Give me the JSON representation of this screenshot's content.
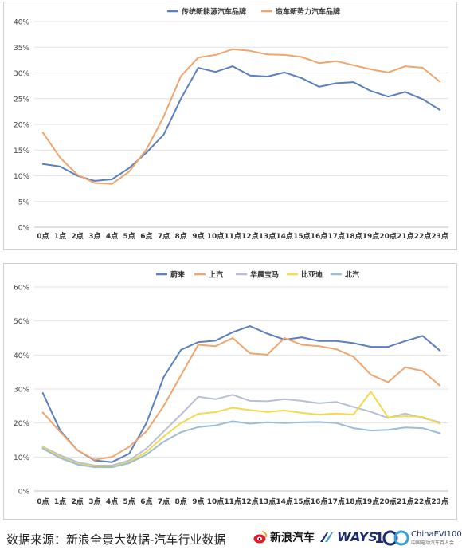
{
  "chart_data": [
    {
      "type": "line",
      "categories": [
        "0点",
        "1点",
        "2点",
        "3点",
        "4点",
        "5点",
        "6点",
        "7点",
        "8点",
        "9点",
        "10点",
        "11点",
        "12点",
        "13点",
        "14点",
        "15点",
        "16点",
        "17点",
        "18点",
        "19点",
        "20点",
        "21点",
        "22点",
        "23点"
      ],
      "ylim": [
        0,
        40
      ],
      "yticks": [
        "0%",
        "5%",
        "10%",
        "15%",
        "20%",
        "25%",
        "30%",
        "35%",
        "40%"
      ],
      "grid": true,
      "legend_position": "top",
      "series": [
        {
          "name": "传统新能源汽车品牌",
          "color": "#5b7fbf",
          "values": [
            12.3,
            11.8,
            10.0,
            9.0,
            9.3,
            11.5,
            14.5,
            18.0,
            25.0,
            31.0,
            30.2,
            31.3,
            29.5,
            29.3,
            30.1,
            29.0,
            27.3,
            28.0,
            28.2,
            26.5,
            25.4,
            26.3,
            24.9,
            22.8
          ]
        },
        {
          "name": "造车新势力汽车品牌",
          "color": "#f0a56e",
          "values": [
            18.4,
            13.5,
            10.2,
            8.6,
            8.4,
            10.8,
            15.1,
            21.5,
            29.4,
            33.0,
            33.5,
            34.6,
            34.3,
            33.6,
            33.5,
            33.1,
            31.9,
            32.3,
            31.5,
            30.7,
            30.1,
            31.3,
            31.0,
            28.3
          ]
        }
      ]
    },
    {
      "type": "line",
      "categories": [
        "0点",
        "1点",
        "2点",
        "3点",
        "4点",
        "5点",
        "6点",
        "7点",
        "8点",
        "9点",
        "10点",
        "11点",
        "12点",
        "13点",
        "14点",
        "15点",
        "16点",
        "17点",
        "18点",
        "19点",
        "20点",
        "21点",
        "22点",
        "23点"
      ],
      "ylim": [
        0,
        60
      ],
      "yticks": [
        "0%",
        "10%",
        "20%",
        "30%",
        "40%",
        "50%",
        "60%"
      ],
      "grid": true,
      "legend_position": "top",
      "series": [
        {
          "name": "蔚来",
          "color": "#5b7fbf",
          "values": [
            28.8,
            17.8,
            12.0,
            9.0,
            8.5,
            11.0,
            20.0,
            33.5,
            41.5,
            43.8,
            44.2,
            46.7,
            48.5,
            46.3,
            44.5,
            45.2,
            44.1,
            44.1,
            43.5,
            42.4,
            42.4,
            44.1,
            45.6,
            41.3
          ]
        },
        {
          "name": "上汽",
          "color": "#f0a56e",
          "values": [
            23.1,
            17.4,
            12.0,
            9.2,
            10.0,
            13.0,
            17.5,
            25.0,
            34.0,
            43.0,
            42.6,
            45.0,
            40.5,
            40.1,
            45.0,
            43.0,
            42.6,
            41.7,
            39.5,
            34.2,
            32.0,
            36.4,
            35.3,
            31.0
          ]
        },
        {
          "name": "华晨宝马",
          "color": "#b9bfd2",
          "values": [
            13.0,
            10.5,
            8.5,
            7.5,
            7.5,
            9.0,
            12.5,
            17.5,
            22.5,
            27.7,
            27.0,
            28.3,
            26.5,
            26.4,
            27.0,
            26.5,
            25.8,
            26.2,
            24.7,
            23.3,
            21.5,
            22.8,
            21.5,
            20.2
          ]
        },
        {
          "name": "比亚迪",
          "color": "#f2d94e",
          "values": [
            12.8,
            10.0,
            8.0,
            7.3,
            7.2,
            8.5,
            11.5,
            16.0,
            20.0,
            22.7,
            23.2,
            24.5,
            23.8,
            23.3,
            23.7,
            23.0,
            22.5,
            22.8,
            22.5,
            29.2,
            21.7,
            22.0,
            21.8,
            19.8
          ]
        },
        {
          "name": "北汽",
          "color": "#9cbcd8",
          "values": [
            12.5,
            9.7,
            7.8,
            7.0,
            7.0,
            8.2,
            10.7,
            14.5,
            17.3,
            18.8,
            19.3,
            20.5,
            19.8,
            20.2,
            20.0,
            20.2,
            20.3,
            20.0,
            18.5,
            17.8,
            18.0,
            18.7,
            18.5,
            17.0
          ]
        }
      ]
    }
  ],
  "footer": {
    "source_text": "数据来源：新浪全景大数据-汽车行业数据",
    "brand_sina": "新浪汽车",
    "brand_ways": "WAYS",
    "brand_cevi": "ChinaEVI100",
    "brand_cevi_sub": "中国电动汽车百人会"
  }
}
